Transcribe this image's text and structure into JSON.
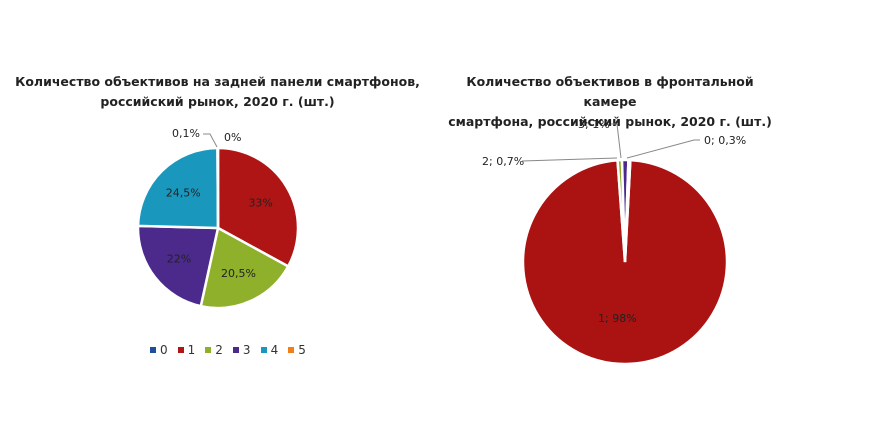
{
  "chart_data": [
    {
      "type": "pie",
      "title": "Количество объективов на задней панели смартфонов, российский рынок, 2020 г. (шт.)",
      "title_lines": [
        "Количество объективов на задней панели смартфонов,",
        "российский рынок, 2020 г. (шт.)"
      ],
      "categories": [
        "0",
        "1",
        "2",
        "3",
        "4",
        "5"
      ],
      "values": [
        0,
        33,
        20.5,
        22,
        24.5,
        0.1
      ],
      "labels": [
        "0%",
        "33%",
        "20,5%",
        "22%",
        "24,5%",
        "0,1%"
      ],
      "colors": [
        "#1f4e9c",
        "#b01515",
        "#8fb02a",
        "#4b2a8c",
        "#1a97bd",
        "#f07f1a"
      ],
      "legend_position": "bottom"
    },
    {
      "type": "pie",
      "title": "Количество объективов в фронтальной камере смартфона, российский рынок, 2020 г. (шт.)",
      "title_lines": [
        "Количество объективов в фронтальной камере",
        "смартфона, российский рынок, 2020 г. (шт.)"
      ],
      "categories": [
        "0",
        "1",
        "2",
        "3"
      ],
      "values": [
        0.3,
        98,
        0.7,
        1
      ],
      "labels": [
        "0; 0,3%",
        "1; 98%",
        "2; 0,7%",
        "3; 1%"
      ],
      "colors": [
        "#1f4e9c",
        "#ab1212",
        "#8fb02a",
        "#4b2a8c"
      ],
      "legend_position": "none"
    }
  ],
  "left": {
    "title_line1": "Количество объективов на задней панели смартфонов,",
    "title_line2": "российский рынок, 2020 г. (шт.)",
    "legend": [
      "0",
      "1",
      "2",
      "3",
      "4",
      "5"
    ]
  },
  "right": {
    "title_line1": "Количество объективов в фронтальной камере",
    "title_line2": "смартфона, российский рынок, 2020 г. (шт.)"
  }
}
